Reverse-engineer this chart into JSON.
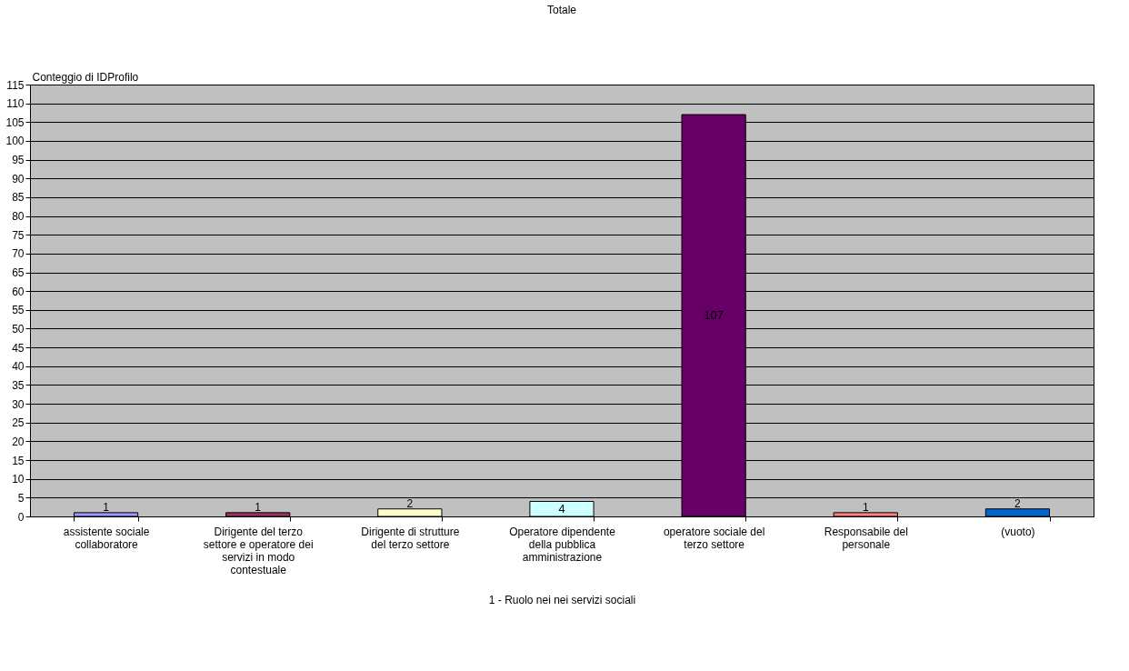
{
  "chart_data": {
    "type": "bar",
    "title": "Totale",
    "xlabel": "1 - Ruolo nei nei servizi sociali",
    "ylabel": "Conteggio di IDProfilo",
    "categories": [
      "assistente sociale collaboratore",
      "Dirigente del terzo settore e operatore dei servizi in modo contestuale",
      "Dirigente di strutture del terzo settore",
      "Operatore dipendente della pubblica amministrazione",
      "operatore sociale del terzo settore",
      "Responsabile del personale",
      "(vuoto)"
    ],
    "values": [
      1,
      1,
      2,
      4,
      107,
      1,
      2
    ],
    "colors": [
      "#9999ff",
      "#993366",
      "#ffffcc",
      "#ccffff",
      "#660066",
      "#ff8080",
      "#0066cc"
    ],
    "ylim": [
      0,
      115
    ],
    "yticks": [
      0,
      5,
      10,
      15,
      20,
      25,
      30,
      35,
      40,
      45,
      50,
      55,
      60,
      65,
      70,
      75,
      80,
      85,
      90,
      95,
      100,
      105,
      110,
      115
    ],
    "grid": "y",
    "data_labels": true
  }
}
